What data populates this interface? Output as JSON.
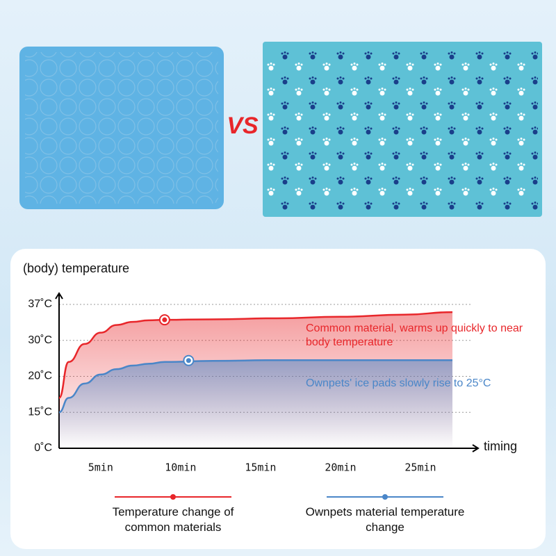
{
  "comparison_label": "VS",
  "chart_data": {
    "type": "line",
    "ylabel": "(body) temperature",
    "xlabel": "timing",
    "xlim": [
      2.4,
      29
    ],
    "ylim": [
      0,
      37
    ],
    "xticks": [
      {
        "value": 5,
        "label": "5min"
      },
      {
        "value": 10,
        "label": "10min"
      },
      {
        "value": 15,
        "label": "15min"
      },
      {
        "value": 20,
        "label": "20min"
      },
      {
        "value": 25,
        "label": "25min"
      }
    ],
    "yticks": [
      {
        "value": 0,
        "label": "0˚C"
      },
      {
        "value": 15,
        "label": "15˚C"
      },
      {
        "value": 20,
        "label": "20˚C"
      },
      {
        "value": 30,
        "label": "30˚C"
      },
      {
        "value": 37,
        "label": "37˚C"
      }
    ],
    "grid": true,
    "series": [
      {
        "name": "Temperature change of common materials",
        "color": "#e8262a",
        "x": [
          2.4,
          3,
          4,
          5,
          6,
          7,
          8,
          9,
          12,
          16,
          20,
          24,
          27
        ],
        "values": [
          17,
          24,
          29,
          31.5,
          33,
          33.6,
          33.9,
          34,
          34.1,
          34.3,
          34.6,
          35,
          35.5
        ],
        "marker": {
          "x": 9,
          "value": 34
        },
        "annotation": "Common material, warms up quickly to near body temperature"
      },
      {
        "name": "Ownpets material temperature change",
        "color": "#4a86c8",
        "x": [
          2.4,
          3,
          4,
          5,
          6,
          7,
          8,
          9,
          12,
          16,
          20,
          24,
          27
        ],
        "values": [
          15,
          17,
          19,
          20.5,
          22,
          23,
          23.5,
          24,
          24.3,
          24.5,
          24.5,
          24.5,
          24.5
        ],
        "marker": {
          "x": 10.5,
          "value": 24.4
        },
        "annotation": "Ownpets' ice pads slowly rise to 25°C"
      }
    ]
  }
}
